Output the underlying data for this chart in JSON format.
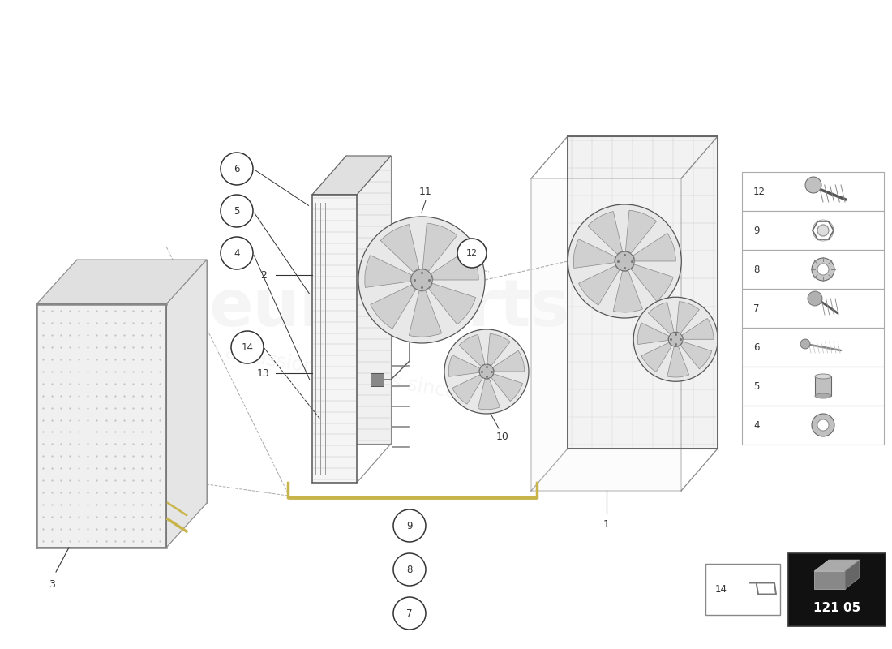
{
  "bg_color": "#ffffff",
  "line_color": "#333333",
  "accent_color": "#c8b44a",
  "diagram_code": "121 05",
  "watermark_color": "#cccccc",
  "bottom_box_bg": "#111111",
  "bottom_box_text": "#ffffff",
  "side_table_parts": [
    12,
    9,
    8,
    7,
    6,
    5,
    4
  ],
  "figsize": [
    11.0,
    8.0
  ],
  "dpi": 100
}
